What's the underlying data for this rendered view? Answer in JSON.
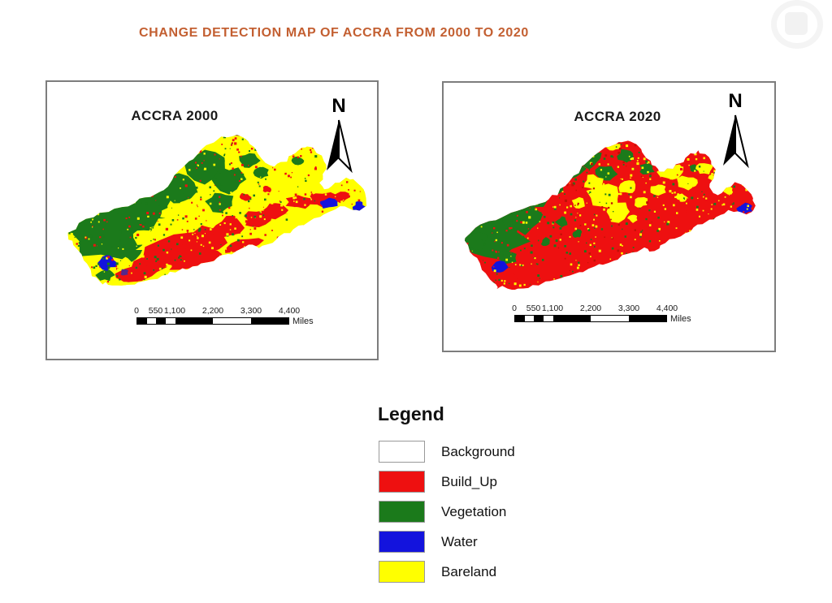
{
  "title": {
    "text": "CHANGE DETECTION MAP OF ACCRA FROM 2000 TO 2020"
  },
  "colors": {
    "title": "#c35f31",
    "frame_border": "#7d7d7d",
    "background_class": "#ffffff",
    "build_up": "#ee1010",
    "vegetation": "#1b7a1b",
    "water": "#1313dd",
    "bareland": "#ffff00"
  },
  "maps": [
    {
      "label": "ACCRA 2000",
      "north_label": "N",
      "scalebar": {
        "ticks": [
          "0",
          "550",
          "1,100",
          "2,200",
          "3,300",
          "4,400"
        ],
        "unit": "Miles"
      }
    },
    {
      "label": "ACCRA 2020",
      "north_label": "N",
      "scalebar": {
        "ticks": [
          "0",
          "550",
          "1,100",
          "2,200",
          "3,300",
          "4,400"
        ],
        "unit": "Miles"
      }
    }
  ],
  "legend": {
    "title": "Legend",
    "items": [
      {
        "label": "Background",
        "color": "#ffffff"
      },
      {
        "label": "Build_Up",
        "color": "#ee1010"
      },
      {
        "label": "Vegetation",
        "color": "#1b7a1b"
      },
      {
        "label": "Water",
        "color": "#1313dd"
      },
      {
        "label": "Bareland",
        "color": "#ffff00"
      }
    ]
  }
}
